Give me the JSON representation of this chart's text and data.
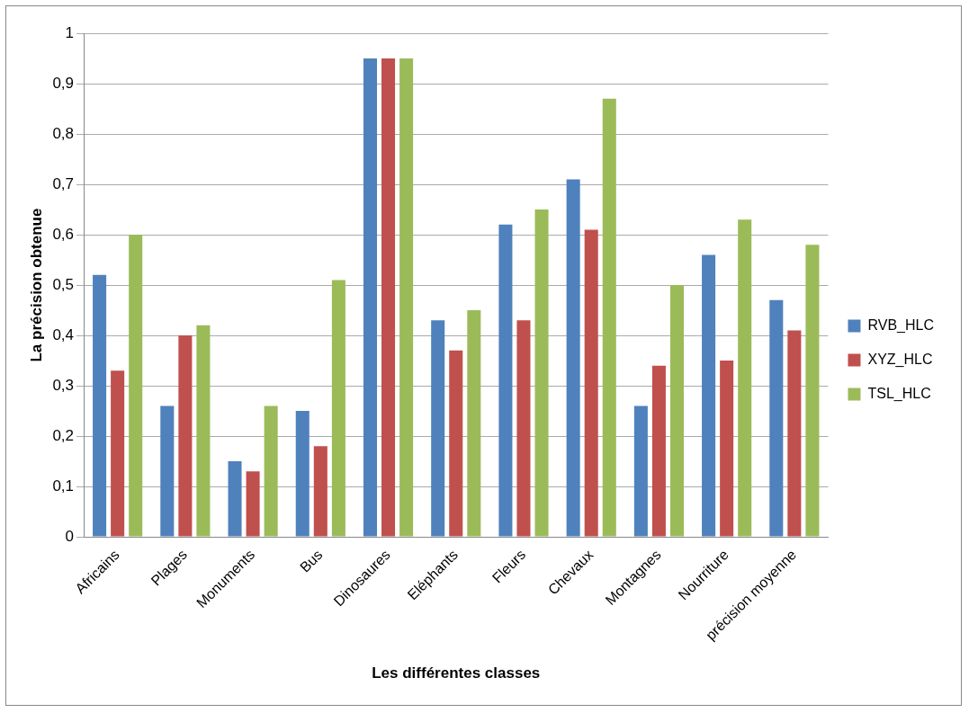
{
  "chart_data": {
    "type": "bar",
    "xlabel": "Les différentes classes",
    "ylabel": "La précision obtenue",
    "categories": [
      "Africains",
      "Plages",
      "Monuments",
      "Bus",
      "Dinosaures",
      "Eléphants",
      "Fleurs",
      "Chevaux",
      "Montagnes",
      "Nourriture",
      "précision moyenne"
    ],
    "series": [
      {
        "name": "RVB_HLC",
        "color": "#4f81bd",
        "values": [
          0.52,
          0.26,
          0.15,
          0.25,
          0.95,
          0.43,
          0.62,
          0.71,
          0.26,
          0.56,
          0.47
        ]
      },
      {
        "name": "XYZ_HLC",
        "color": "#c0504d",
        "values": [
          0.33,
          0.4,
          0.13,
          0.18,
          0.95,
          0.37,
          0.43,
          0.61,
          0.34,
          0.35,
          0.41
        ]
      },
      {
        "name": "TSL_HLC",
        "color": "#9bbb59",
        "values": [
          0.6,
          0.42,
          0.26,
          0.51,
          0.95,
          0.45,
          0.65,
          0.87,
          0.5,
          0.63,
          0.58
        ]
      }
    ],
    "ylim": [
      0,
      1
    ],
    "yticks": [
      0,
      {
        "value": 0.1,
        "label": "0,1"
      },
      {
        "value": 0.2,
        "label": "0,2"
      },
      {
        "value": 0.3,
        "label": "0,3"
      },
      {
        "value": 0.4,
        "label": "0,4"
      },
      {
        "value": 0.5,
        "label": "0,5"
      },
      {
        "value": 0.6,
        "label": "0,6"
      },
      {
        "value": 0.7,
        "label": "0,7"
      },
      {
        "value": 0.8,
        "label": "0,8"
      },
      {
        "value": 0.9,
        "label": "0,9"
      },
      1
    ],
    "grid": "y",
    "legend": "right"
  }
}
